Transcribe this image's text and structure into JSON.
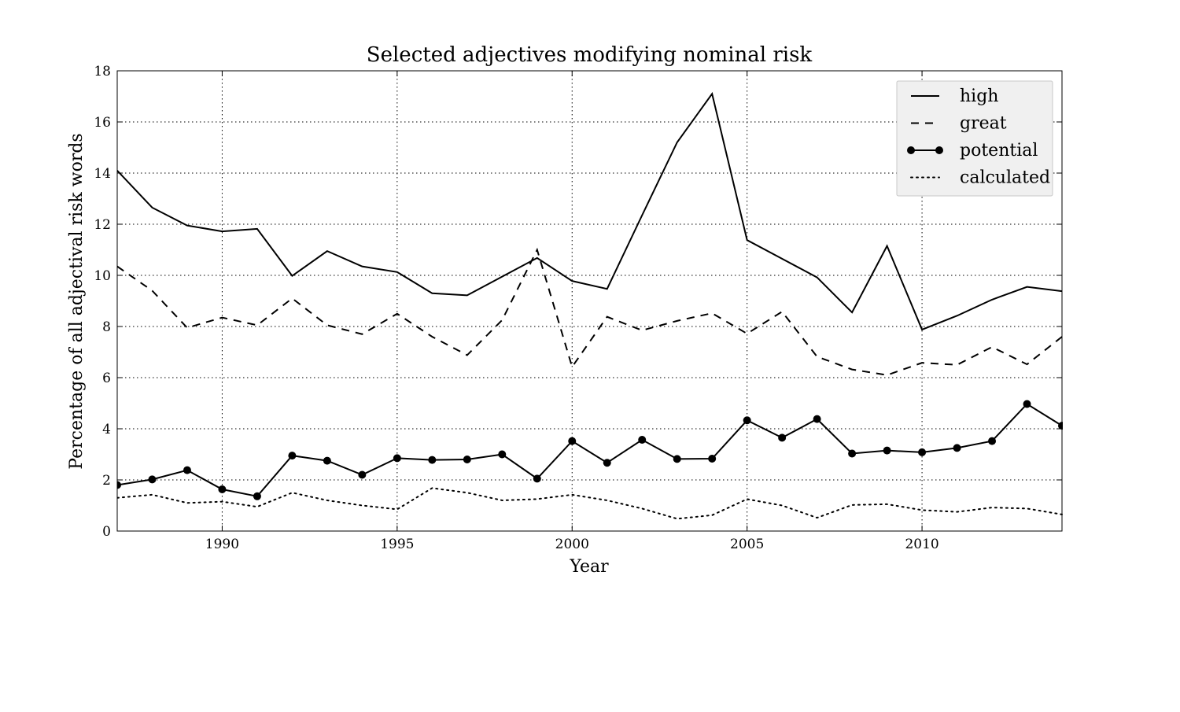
{
  "chart_data": {
    "type": "line",
    "title": "Selected adjectives modifying nominal risk",
    "xlabel": "Year",
    "ylabel": "Percentage of all adjectival risk words",
    "xlim": [
      1987,
      2014
    ],
    "ylim": [
      0,
      18
    ],
    "x_ticks": [
      1990,
      1995,
      2000,
      2005,
      2010
    ],
    "y_ticks": [
      0,
      2,
      4,
      6,
      8,
      10,
      12,
      14,
      16,
      18
    ],
    "grid": true,
    "legend_position": "top-right",
    "x": [
      1987,
      1988,
      1989,
      1990,
      1991,
      1992,
      1993,
      1994,
      1995,
      1996,
      1997,
      1998,
      1999,
      2000,
      2001,
      2002,
      2003,
      2004,
      2005,
      2006,
      2007,
      2008,
      2009,
      2010,
      2011,
      2012,
      2013,
      2014
    ],
    "series": [
      {
        "name": "high",
        "style": "solid",
        "color": "#000000",
        "values": [
          14.1,
          12.65,
          11.95,
          11.72,
          11.82,
          9.98,
          10.95,
          10.35,
          10.13,
          9.3,
          9.22,
          9.95,
          10.68,
          9.78,
          9.47,
          12.35,
          15.2,
          17.1,
          11.38,
          10.65,
          9.92,
          8.55,
          11.15,
          7.88,
          8.42,
          9.05,
          9.55,
          9.38
        ]
      },
      {
        "name": "great",
        "style": "dashed",
        "color": "#000000",
        "values": [
          10.35,
          9.4,
          7.95,
          8.35,
          8.05,
          9.1,
          8.05,
          7.7,
          8.5,
          7.6,
          6.88,
          8.25,
          11.0,
          6.42,
          8.38,
          7.85,
          8.22,
          8.52,
          7.72,
          8.58,
          6.82,
          6.32,
          6.1,
          6.58,
          6.5,
          7.2,
          6.52,
          7.6
        ]
      },
      {
        "name": "potential",
        "style": "solid-marker",
        "color": "#000000",
        "values": [
          1.8,
          2.02,
          2.38,
          1.63,
          1.36,
          2.95,
          2.75,
          2.2,
          2.85,
          2.78,
          2.8,
          3.0,
          2.05,
          3.52,
          2.67,
          3.57,
          2.82,
          2.83,
          4.33,
          3.65,
          4.38,
          3.03,
          3.15,
          3.08,
          3.25,
          3.52,
          4.97,
          4.12
        ]
      },
      {
        "name": "calculated",
        "style": "dotted",
        "color": "#000000",
        "values": [
          1.3,
          1.42,
          1.1,
          1.15,
          0.95,
          1.5,
          1.2,
          1.0,
          0.85,
          1.68,
          1.5,
          1.2,
          1.25,
          1.42,
          1.2,
          0.88,
          0.48,
          0.62,
          1.25,
          1.0,
          0.52,
          1.02,
          1.05,
          0.82,
          0.75,
          0.92,
          0.88,
          0.65
        ]
      }
    ]
  }
}
